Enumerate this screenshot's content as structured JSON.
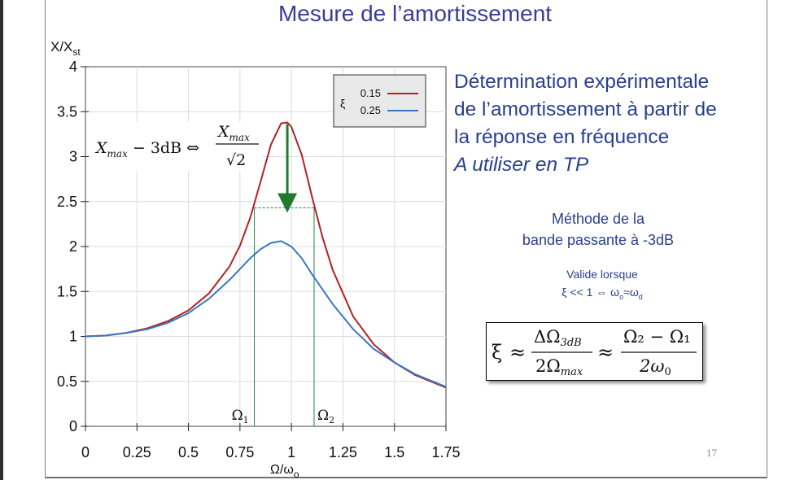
{
  "slide": {
    "title": "Mesure de l’amortissement",
    "page_number": "17"
  },
  "description": {
    "line1": "Détermination expérimentale",
    "line2": "de l’amortissement à partir de",
    "line3": "la réponse en fréquence",
    "line4": "A utiliser en TP"
  },
  "method": {
    "line1": "Méthode de la",
    "line2": "bande passante à -3dB"
  },
  "validity": {
    "line1": "Valide lorsque",
    "line2_pre": "ξ << 1 ⇔ ω",
    "line2_sub1": "o",
    "line2_mid": "≈ω",
    "line2_sub2": "d"
  },
  "formula": {
    "xi": "ξ",
    "approx": "≈",
    "num1": "ΔΩ",
    "num1_sub": "3dB",
    "den1": "2Ω",
    "den1_sub": "max",
    "num2": "Ω₂ − Ω₁",
    "den2": "2ω",
    "den2_sub": "0"
  },
  "annotation": {
    "lhs": "X",
    "lhs_sub": "max",
    "minus3db": " − 3dB ⇔ ",
    "num": "X",
    "num_sub": "max",
    "den": "√2"
  },
  "chart_data": {
    "type": "line",
    "title": "",
    "xlabel": "Ω/ω",
    "xlabel_sub": "o",
    "ylabel": "X/X",
    "ylabel_sub": "st",
    "xlim": [
      0,
      1.75
    ],
    "ylim": [
      0,
      4
    ],
    "x_ticks": [
      "0",
      "0.25",
      "0.5",
      "0.75",
      "1",
      "1.25",
      "1.5",
      "1.75"
    ],
    "y_ticks": [
      "0",
      "0.5",
      "1",
      "1.5",
      "2",
      "2.5",
      "3",
      "3.5",
      "4"
    ],
    "legend": {
      "title": "ξ",
      "placement": "top-right"
    },
    "series": [
      {
        "name": "0.15",
        "color": "#b22222",
        "x": [
          0,
          0.1,
          0.2,
          0.3,
          0.4,
          0.5,
          0.6,
          0.7,
          0.75,
          0.8,
          0.85,
          0.9,
          0.95,
          0.98,
          1.0,
          1.05,
          1.1,
          1.15,
          1.2,
          1.3,
          1.4,
          1.5,
          1.6,
          1.75
        ],
        "y": [
          1.0,
          1.01,
          1.04,
          1.09,
          1.17,
          1.29,
          1.48,
          1.78,
          2.01,
          2.32,
          2.72,
          3.13,
          3.37,
          3.38,
          3.33,
          3.02,
          2.55,
          2.11,
          1.74,
          1.22,
          0.91,
          0.71,
          0.57,
          0.43
        ]
      },
      {
        "name": "0.25",
        "color": "#3a76c4",
        "x": [
          0,
          0.1,
          0.2,
          0.3,
          0.4,
          0.5,
          0.6,
          0.7,
          0.8,
          0.85,
          0.9,
          0.95,
          1.0,
          1.05,
          1.1,
          1.2,
          1.3,
          1.4,
          1.5,
          1.6,
          1.75
        ],
        "y": [
          1.0,
          1.01,
          1.04,
          1.08,
          1.15,
          1.26,
          1.42,
          1.63,
          1.87,
          1.97,
          2.04,
          2.06,
          2.0,
          1.87,
          1.69,
          1.36,
          1.08,
          0.86,
          0.71,
          0.58,
          0.44
        ]
      }
    ],
    "peak_x": 0.98,
    "peak_y": 3.38,
    "half_power_y": 2.43,
    "omega1_x": 0.82,
    "omega2_x": 1.11,
    "omega1_label": "Ω",
    "omega1_sub": "1",
    "omega2_label": "Ω",
    "omega2_sub": "2"
  }
}
